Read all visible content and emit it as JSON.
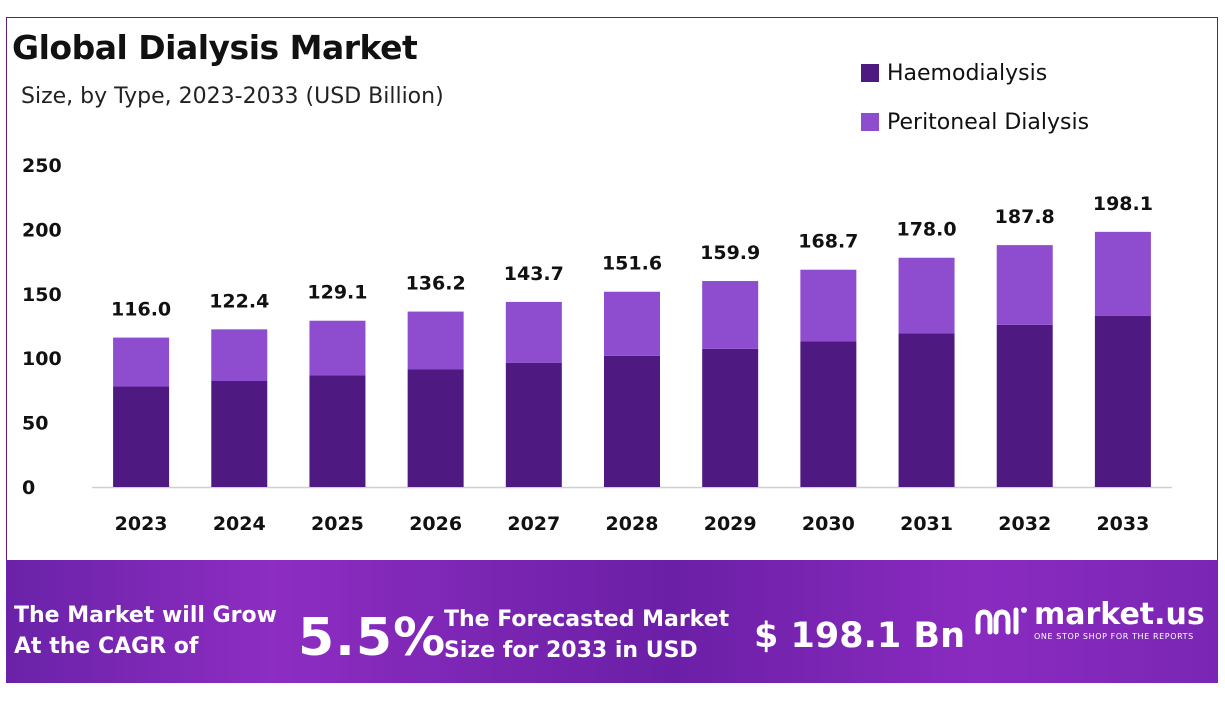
{
  "header": {
    "title": "Global Dialysis Market",
    "subtitle": "Size, by Type, 2023-2033 (USD Billion)"
  },
  "legend": [
    {
      "label": "Haemodialysis",
      "color": "#4e1a82"
    },
    {
      "label": "Peritoneal Dialysis",
      "color": "#8e4ccf"
    }
  ],
  "chart_data": {
    "type": "bar",
    "stacked": true,
    "title": "Global Dialysis Market",
    "subtitle": "Size, by Type, 2023-2033 (USD Billion)",
    "categories": [
      "2023",
      "2024",
      "2025",
      "2026",
      "2027",
      "2028",
      "2029",
      "2030",
      "2031",
      "2032",
      "2033"
    ],
    "series": [
      {
        "name": "Haemodialysis",
        "color": "#4e1a82",
        "values": [
          78.0,
          82.3,
          86.8,
          91.5,
          96.5,
          101.8,
          107.3,
          113.2,
          119.4,
          125.9,
          132.8
        ]
      },
      {
        "name": "Peritoneal Dialysis",
        "color": "#8e4ccf",
        "values": [
          38.0,
          40.1,
          42.3,
          44.7,
          47.2,
          49.8,
          52.6,
          55.5,
          58.6,
          61.9,
          65.3
        ]
      }
    ],
    "totals": [
      "116.0",
      "122.4",
      "129.1",
      "136.2",
      "143.7",
      "151.6",
      "159.9",
      "168.7",
      "178.0",
      "187.8",
      "198.1"
    ],
    "yticks": [
      0,
      50,
      100,
      150,
      200,
      250
    ],
    "ylim": [
      0,
      250
    ],
    "xlabel": "",
    "ylabel": "",
    "grid": false,
    "legend_position": "top-right"
  },
  "banner": {
    "grow_text_line1": "The Market will Grow",
    "grow_text_line2": "At the CAGR of",
    "cagr_value": "5.5%",
    "forecast_line1": "The Forecasted Market",
    "forecast_line2": "Size for 2033 in USD",
    "forecast_value": "$ 198.1 Bn",
    "brand_name": "market.us",
    "brand_tagline": "ONE STOP SHOP FOR THE REPORTS"
  }
}
